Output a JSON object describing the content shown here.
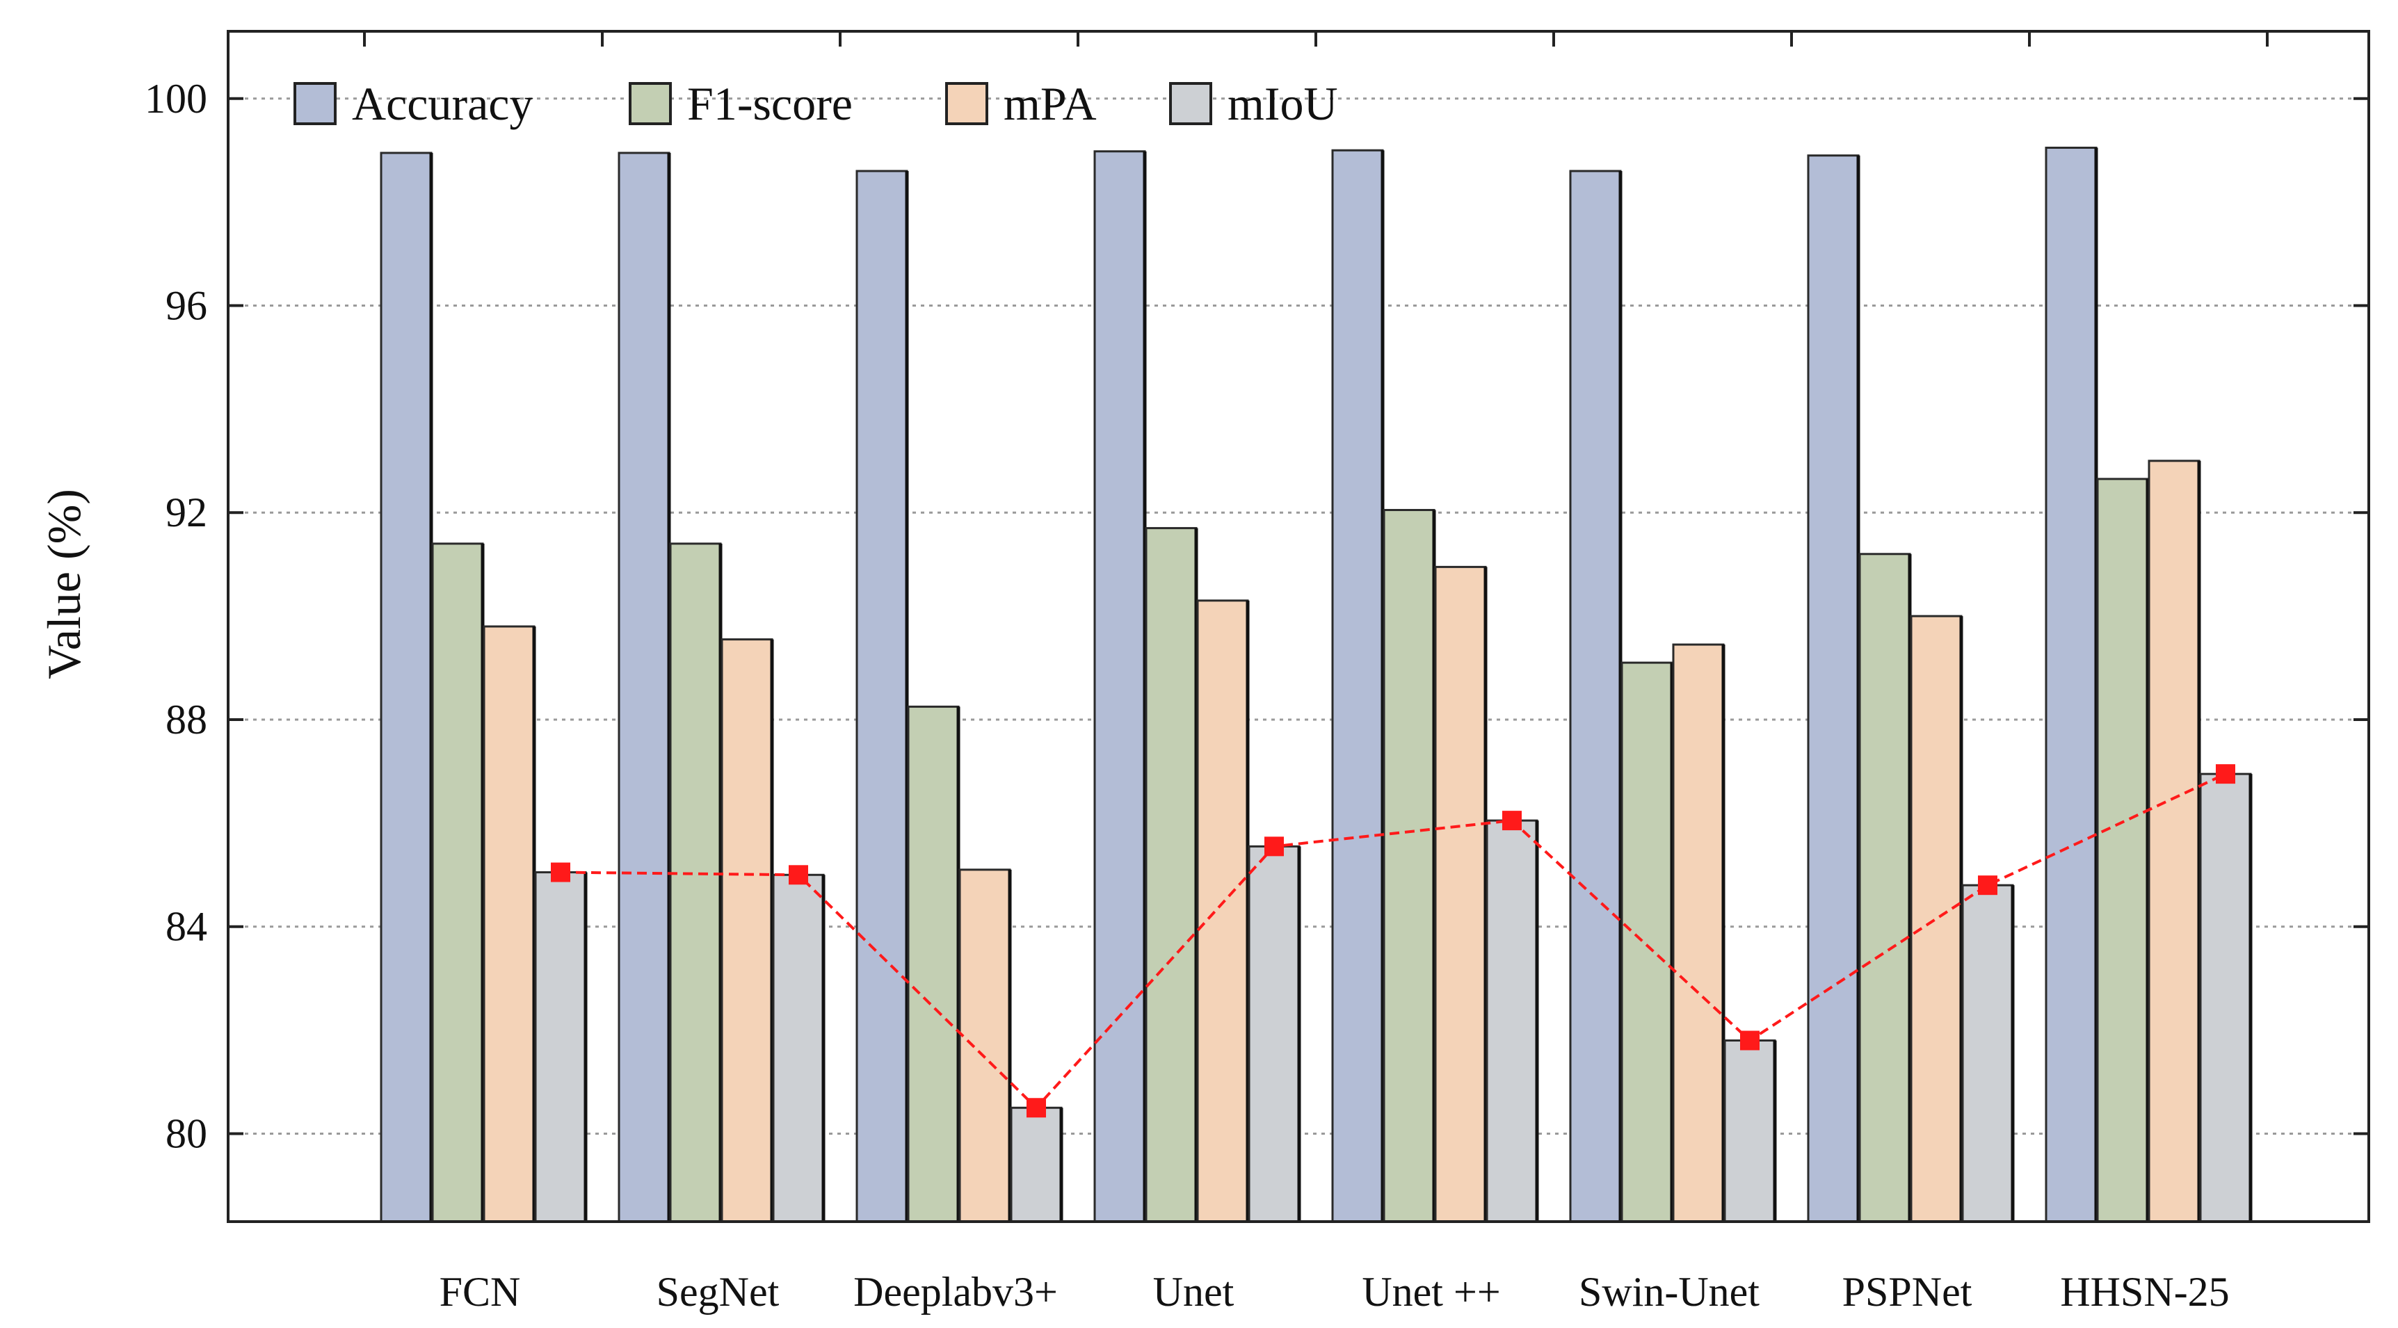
{
  "chart_data": {
    "type": "bar",
    "title": "",
    "xlabel": "",
    "ylabel": "Value (%)",
    "ylim": [
      78.3,
      101.3
    ],
    "yticks": [
      80,
      84,
      88,
      92,
      96,
      100
    ],
    "grid": true,
    "legend_position": "top-left",
    "categories": [
      "FCN",
      "SegNet",
      "Deeplabv3+",
      "Unet",
      "Unet ++",
      "Swin-Unet",
      "PSPNet",
      "HHSN-25"
    ],
    "series": [
      {
        "name": "Accuracy",
        "color": "#b3bdd6",
        "values": [
          98.95,
          98.95,
          98.6,
          98.98,
          99.0,
          98.6,
          98.9,
          99.05
        ]
      },
      {
        "name": "F1-score",
        "color": "#c3cfb3",
        "values": [
          91.4,
          91.4,
          88.25,
          91.7,
          92.05,
          89.1,
          91.2,
          92.65
        ]
      },
      {
        "name": "mPA",
        "color": "#f4d3b8",
        "values": [
          89.8,
          89.55,
          85.1,
          90.3,
          90.95,
          89.45,
          90.0,
          93.0
        ]
      },
      {
        "name": "mIoU",
        "color": "#cdd0d4",
        "values": [
          85.05,
          85.0,
          80.5,
          85.55,
          86.05,
          81.8,
          84.8,
          86.95
        ]
      }
    ],
    "trend_line": {
      "series": "mIoU",
      "color": "#ff1a1a",
      "style": "dashed",
      "marker": "square"
    }
  }
}
